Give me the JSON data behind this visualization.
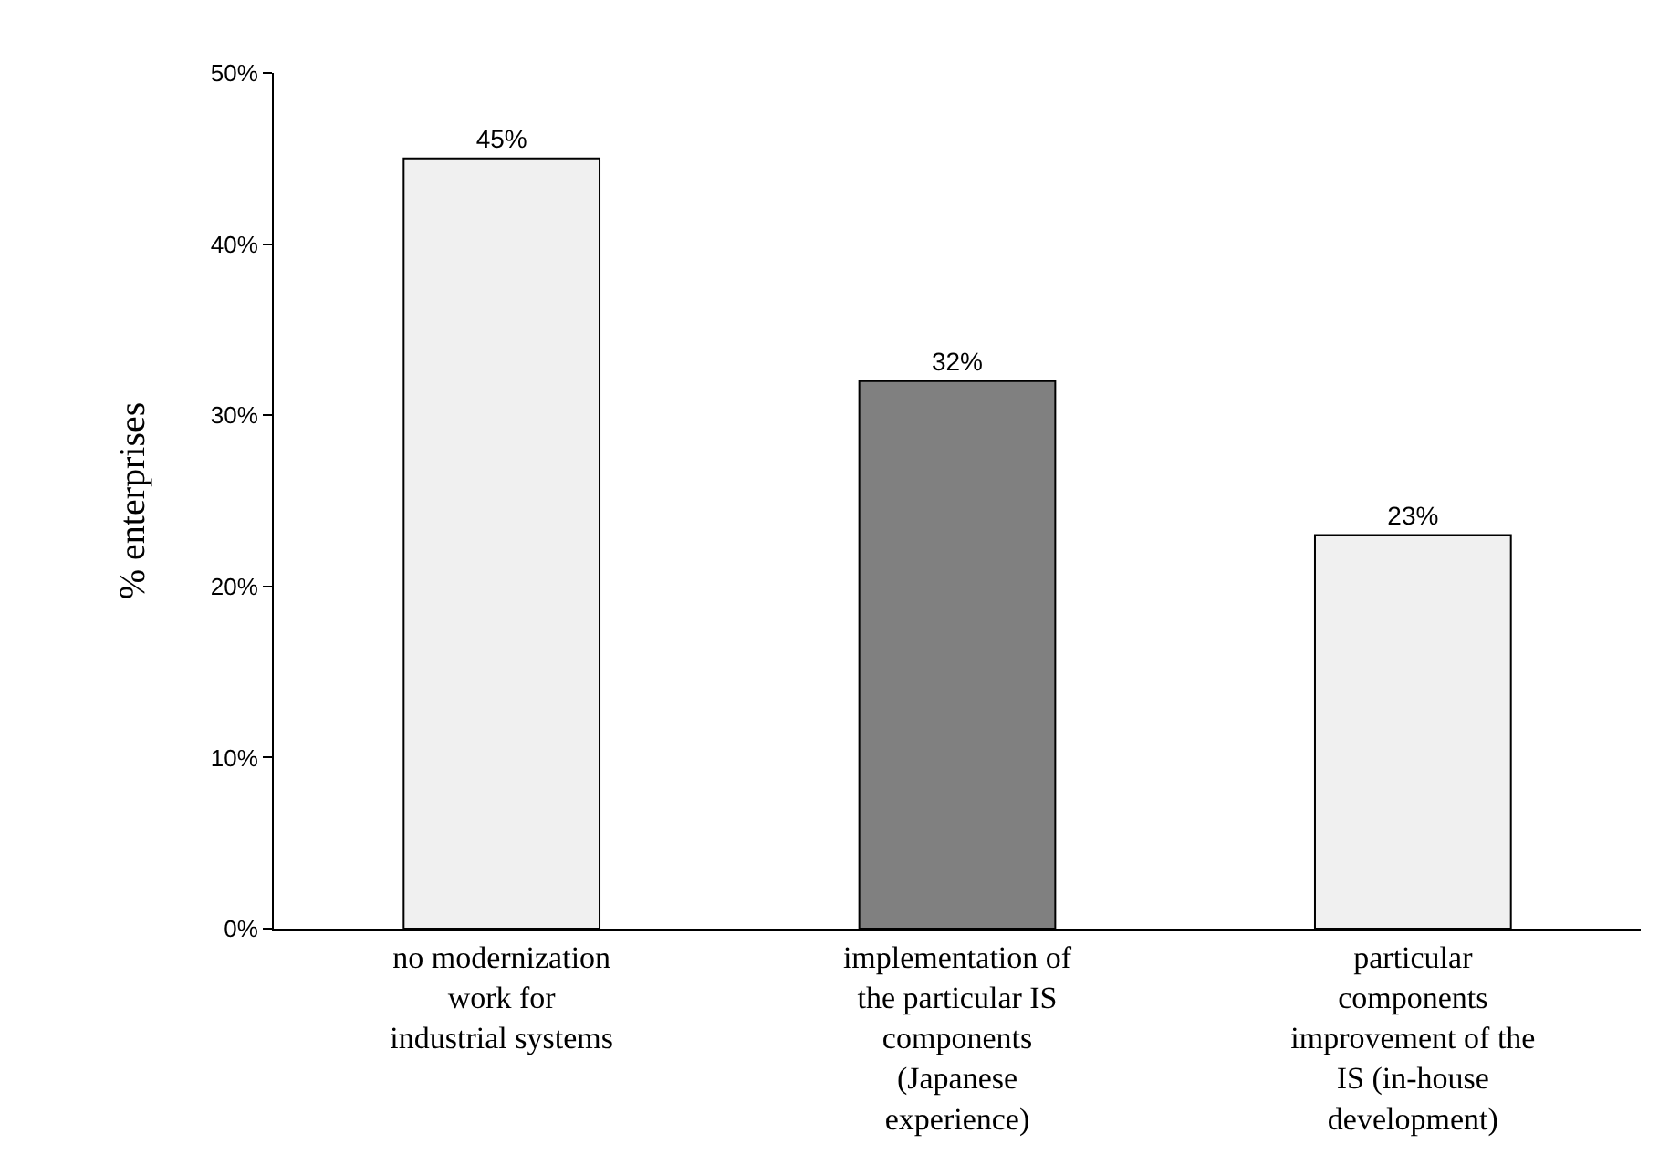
{
  "chart_data": {
    "type": "bar",
    "ylabel": "% enterprises",
    "categories": [
      "no modernization work for industrial systems",
      "implementation of the particular IS components (Japanese experience)",
      "particular components improvement of the IS (in-house development)"
    ],
    "values": [
      45,
      32,
      23
    ],
    "colors": [
      "#f0f0f0",
      "#808080",
      "#f0f0f0"
    ],
    "value_labels": [
      "45%",
      "32%",
      "23%"
    ],
    "ylim": [
      0,
      50
    ],
    "yticks": [
      {
        "value": 0,
        "label": "0%"
      },
      {
        "value": 10,
        "label": "10%"
      },
      {
        "value": 20,
        "label": "20%"
      },
      {
        "value": 30,
        "label": "30%"
      },
      {
        "value": 40,
        "label": "40%"
      },
      {
        "value": 50,
        "label": "50%"
      }
    ],
    "grid": false
  }
}
